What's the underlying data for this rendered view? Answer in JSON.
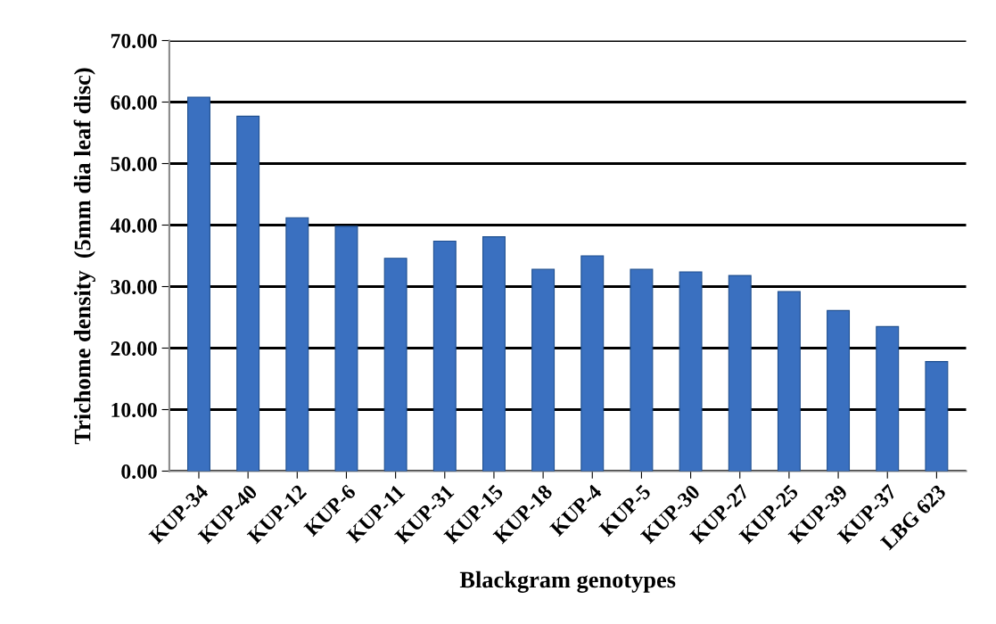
{
  "chart_data": {
    "type": "bar",
    "xlabel": "Blackgram genotypes",
    "ylabel": "Trichome density  (5mm dia leaf disc)",
    "categories": [
      "KUP-34",
      "KUP-40",
      "KUP-12",
      "KUP-6",
      "KUP-11",
      "KUP-31",
      "KUP-15",
      "KUP-18",
      "KUP-4",
      "KUP-5",
      "KUP-30",
      "KUP-27",
      "KUP-25",
      "KUP-39",
      "KUP-37",
      "LBG 623"
    ],
    "values": [
      60.8,
      57.7,
      41.2,
      39.8,
      34.6,
      37.4,
      38.1,
      32.8,
      35.0,
      32.8,
      32.4,
      31.8,
      29.2,
      26.1,
      23.5,
      17.8
    ],
    "color": "#3a70c0",
    "ylim": [
      0,
      70
    ],
    "yticks": [
      {
        "value": 0,
        "label": "0.00"
      },
      {
        "value": 10,
        "label": "10.00"
      },
      {
        "value": 20,
        "label": "20.00"
      },
      {
        "value": 30,
        "label": "30.00"
      },
      {
        "value": 40,
        "label": "40.00"
      },
      {
        "value": 50,
        "label": "50.00"
      },
      {
        "value": 60,
        "label": "60.00"
      },
      {
        "value": 70,
        "label": "70.00"
      }
    ],
    "grid": "y"
  }
}
